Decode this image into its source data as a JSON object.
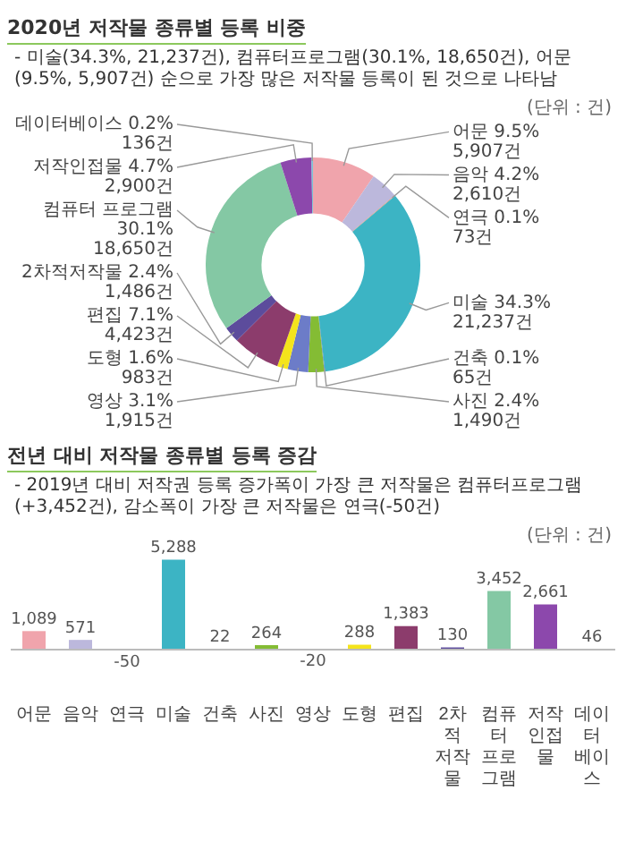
{
  "chart_data": [
    {
      "type": "donut",
      "title": "2020년 저작물 종류별 등록 비중",
      "subtitle": "- 미술(34.3%, 21,237건), 컴퓨터프로그램(30.1%, 18,650건), 어문(9.5%, 5,907건) 순으로 가장 많은 저작물 등록이 된 것으로 나타남",
      "annotations": [
        "(단위 : 건)"
      ],
      "categories": [
        "어문",
        "음악",
        "연극",
        "미술",
        "건축",
        "사진",
        "영상",
        "도형",
        "편집",
        "2차적저작물",
        "컴퓨터 프로그램",
        "저작인접물",
        "데이터베이스"
      ],
      "values": [
        5907,
        2610,
        73,
        21237,
        65,
        1490,
        1915,
        983,
        4423,
        1486,
        18650,
        2900,
        136
      ],
      "colors": [
        "#f0a4ac",
        "#bcb8dc",
        "#e0906c",
        "#3cb4c4",
        "#4c84c8",
        "#84bc34",
        "#6c7cc8",
        "#f4e41c",
        "#8c3c6c",
        "#5c4c9c",
        "#84c8a4",
        "#8c48ac",
        "#7cc4d4"
      ],
      "value_labels": [
        "9.5%\n5,907건",
        "4.2%\n2,610건",
        "0.1%\n73건",
        "34.3%\n21,237건",
        "0.1%\n65건",
        "2.4%\n1,490건",
        "3.1%\n1,915건",
        "1.6%\n983건",
        "7.1%\n4,423건",
        "2.4%\n1,486건",
        "30.1%\n18,650건",
        "4.7%\n2,900건",
        "0.2%\n136건"
      ]
    },
    {
      "type": "bar",
      "title": "전년 대비 저작물 종류별 등록 증감",
      "subtitle": "- 2019년 대비 저작권 등록 증가폭이 가장 큰 저작물은 컴퓨터프로그램(+3,452건), 감소폭이 가장 큰 저작물은 연극(-50건)",
      "annotations": [
        "(단위 : 건)"
      ],
      "categories": [
        "어문",
        "음악",
        "연극",
        "미술",
        "건축",
        "사진",
        "영상",
        "도형",
        "편집",
        "2차적 저작물",
        "컴퓨터 프로그램",
        "저작 인접물",
        "데이터 베이스"
      ],
      "values": [
        1089,
        571,
        -50,
        5288,
        22,
        264,
        -20,
        288,
        1383,
        130,
        3452,
        2661,
        46
      ],
      "colors": [
        "#f0a4ac",
        "#bcb8dc",
        "#e0906c",
        "#3cb4c4",
        "#4c84c8",
        "#84bc34",
        "#6c7cc8",
        "#f4e41c",
        "#8c3c6c",
        "#5c4c9c",
        "#84c8a4",
        "#8c48ac",
        "#7cc4d4"
      ],
      "value_labels": [
        "1,089",
        "571",
        "-50",
        "5,288",
        "22",
        "264",
        "-20",
        "288",
        "1,383",
        "130",
        "3,452",
        "2,661",
        "46"
      ],
      "tick_labels": "x"
    }
  ]
}
